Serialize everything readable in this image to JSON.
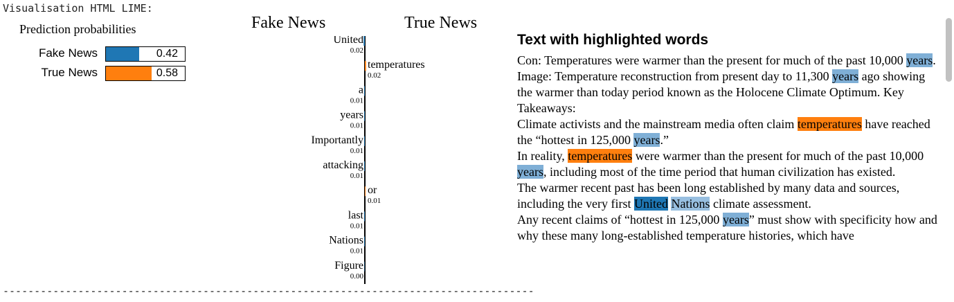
{
  "header": "Visualisation HTML LIME:",
  "probabilities": {
    "title": "Prediction probabilities",
    "items": [
      {
        "label": "Fake News",
        "value": 0.42,
        "display": "0.42",
        "color": "#1f77b4"
      },
      {
        "label": "True News",
        "value": 0.58,
        "display": "0.58",
        "color": "#ff7f0e"
      }
    ]
  },
  "classes": {
    "left": "Fake News",
    "right": "True News",
    "left_color": "#1f77b4",
    "right_color": "#ff7f0e"
  },
  "chart_data": {
    "type": "bar",
    "orientation": "horizontal-diverging",
    "features": [
      {
        "name": "United",
        "weight": "0.02",
        "side": "left",
        "value": -0.02
      },
      {
        "name": "temperatures",
        "weight": "0.02",
        "side": "right",
        "value": 0.02
      },
      {
        "name": "a",
        "weight": "0.01",
        "side": "left",
        "value": -0.01
      },
      {
        "name": "years",
        "weight": "0.01",
        "side": "left",
        "value": -0.01
      },
      {
        "name": "Importantly",
        "weight": "0.01",
        "side": "left",
        "value": -0.01
      },
      {
        "name": "attacking",
        "weight": "0.01",
        "side": "left",
        "value": -0.01
      },
      {
        "name": "or",
        "weight": "0.01",
        "side": "right",
        "value": 0.01
      },
      {
        "name": "last",
        "weight": "0.01",
        "side": "left",
        "value": -0.01
      },
      {
        "name": "Nations",
        "weight": "0.01",
        "side": "left",
        "value": -0.01
      },
      {
        "name": "Figure",
        "weight": "0.00",
        "side": "left",
        "value": -0.0
      }
    ]
  },
  "text_panel": {
    "title": "Text with highlighted words",
    "paragraphs": [
      [
        {
          "t": "Con: Temperatures were warmer than the present for much of the past 10,000 "
        },
        {
          "t": "years",
          "hl": "blue-1"
        },
        {
          "t": ". Image: Temperature reconstruction from present day to 11,300 "
        },
        {
          "t": "years",
          "hl": "blue-1"
        },
        {
          "t": " ago showing the warmer than today period known as the Holocene Climate Optimum. Key Takeaways:"
        }
      ],
      [
        {
          "t": "Climate activists and the mainstream media often claim "
        },
        {
          "t": "temperatures",
          "hl": "orange"
        },
        {
          "t": " have reached the “hottest in 125,000 "
        },
        {
          "t": "years",
          "hl": "blue-1"
        },
        {
          "t": ".”"
        }
      ],
      [
        {
          "t": "In reality, "
        },
        {
          "t": "temperatures",
          "hl": "orange"
        },
        {
          "t": " were warmer than the present for much of the past 10,000 "
        },
        {
          "t": "years",
          "hl": "blue-1"
        },
        {
          "t": ", including most of the time period that human civilization has existed."
        }
      ],
      [
        {
          "t": "The warmer recent past has been long established by many data and sources, including the very first "
        },
        {
          "t": "United",
          "hl": "blue-2"
        },
        {
          "t": " "
        },
        {
          "t": "Nations",
          "hl": "blue-3"
        },
        {
          "t": " climate assessment."
        }
      ],
      [
        {
          "t": "Any recent claims of “hottest in 125,000 "
        },
        {
          "t": "years",
          "hl": "blue-1"
        },
        {
          "t": "” must show with specificity how and why these many long-established temperature histories, which have"
        }
      ]
    ]
  },
  "divider": "-----------------------------------------------------------------------------------------------------"
}
